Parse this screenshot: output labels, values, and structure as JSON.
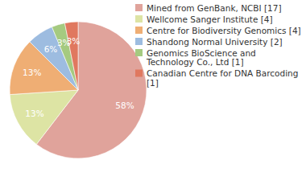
{
  "chart_data": {
    "type": "pie",
    "categories": [
      "Mined from GenBank, NCBI [17]",
      "Wellcome Sanger Institute [4]",
      "Centre for Biodiversity Genomics [4]",
      "Shandong Normal University [2]",
      "Genomics BioScience and Technology Co., Ltd [1]",
      "Canadian Centre for DNA Barcoding [1]"
    ],
    "values": [
      58,
      13,
      13,
      6,
      3,
      3
    ],
    "value_labels": [
      "58%",
      "13%",
      "13%",
      "6%",
      "3%",
      "3%"
    ],
    "data_labels": true,
    "colors": [
      "#e0a39b",
      "#dde4a4",
      "#efae74",
      "#9dbce0",
      "#a5ca80",
      "#e0785f"
    ]
  }
}
